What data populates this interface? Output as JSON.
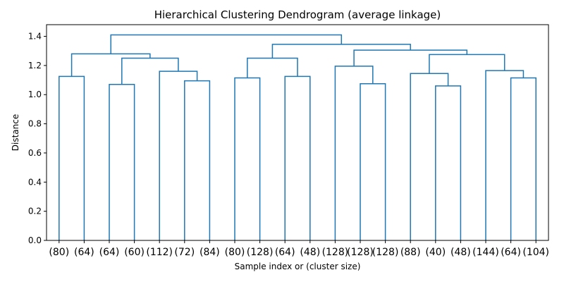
{
  "chart_data": {
    "type": "dendrogram",
    "title": "Hierarchical Clustering Dendrogram (average linkage)",
    "xlabel": "Sample index or (cluster size)",
    "ylabel": "Distance",
    "ylim": [
      0,
      1.48
    ],
    "yticks": [
      0.0,
      0.2,
      0.4,
      0.6,
      0.8,
      1.0,
      1.2,
      1.4
    ],
    "yticklabels": [
      "0.0",
      "0.2",
      "0.4",
      "0.6",
      "0.8",
      "1.0",
      "1.2",
      "1.4"
    ],
    "leaves": [
      "(80)",
      "(64)",
      "(64)",
      "(60)",
      "(112)",
      "(72)",
      "(84)",
      "(80)",
      "(128)",
      "(64)",
      "(48)",
      "(128)",
      "(128)",
      "(128)",
      "(88)",
      "(40)",
      "(48)",
      "(144)",
      "(64)",
      "(104)"
    ],
    "link_color": "#1f77b4",
    "grid": false,
    "merges": [
      {
        "left": "leaf:0",
        "right": "leaf:1",
        "height": 1.125
      },
      {
        "left": "leaf:2",
        "right": "leaf:3",
        "height": 1.07
      },
      {
        "left": "leaf:5",
        "right": "leaf:6",
        "height": 1.095
      },
      {
        "left": "leaf:4",
        "right": "node:2",
        "height": 1.16
      },
      {
        "left": "node:1",
        "right": "node:3",
        "height": 1.25
      },
      {
        "left": "node:0",
        "right": "node:4",
        "height": 1.28
      },
      {
        "left": "leaf:7",
        "right": "leaf:8",
        "height": 1.115
      },
      {
        "left": "leaf:9",
        "right": "leaf:10",
        "height": 1.125
      },
      {
        "left": "node:6",
        "right": "node:7",
        "height": 1.25
      },
      {
        "left": "leaf:12",
        "right": "leaf:13",
        "height": 1.075
      },
      {
        "left": "leaf:11",
        "right": "node:9",
        "height": 1.195
      },
      {
        "left": "leaf:15",
        "right": "leaf:16",
        "height": 1.06
      },
      {
        "left": "leaf:14",
        "right": "node:11",
        "height": 1.145
      },
      {
        "left": "leaf:18",
        "right": "leaf:19",
        "height": 1.115
      },
      {
        "left": "leaf:17",
        "right": "node:13",
        "height": 1.165
      },
      {
        "left": "node:12",
        "right": "node:14",
        "height": 1.275
      },
      {
        "left": "node:10",
        "right": "node:15",
        "height": 1.305
      },
      {
        "left": "node:8",
        "right": "node:16",
        "height": 1.345
      },
      {
        "left": "node:5",
        "right": "node:17",
        "height": 1.41
      }
    ]
  }
}
